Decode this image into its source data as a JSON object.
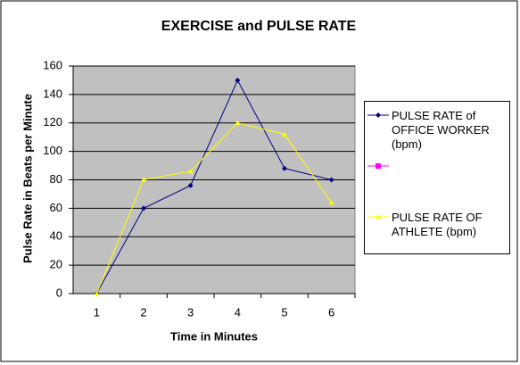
{
  "chart_data": {
    "type": "line",
    "title": "EXERCISE and PULSE RATE",
    "x_label": "Time in Minutes",
    "y_label": "Pulse Rate in  Beats per Minute",
    "categories": [
      "1",
      "2",
      "3",
      "4",
      "5",
      "6"
    ],
    "series": [
      {
        "name": "PULSE RATE of OFFICE WORKER (bpm)",
        "color": "#000080",
        "marker": "diamond",
        "values": [
          0,
          60,
          76,
          150,
          88,
          80
        ]
      },
      {
        "name": null,
        "color": "#ff00ff",
        "marker": "square",
        "values": [
          null,
          null,
          null,
          null,
          null,
          null
        ]
      },
      {
        "name": "PULSE RATE OF ATHLETE (bpm)",
        "color": "#ffff00",
        "marker": "triangle",
        "values": [
          0,
          80,
          86,
          120,
          112,
          64
        ]
      }
    ],
    "ylim": [
      0,
      160
    ],
    "yticks": [
      0,
      20,
      40,
      60,
      80,
      100,
      120,
      140,
      160
    ],
    "grid": true,
    "plot_background": "#c0c0c0",
    "legend": "right"
  }
}
